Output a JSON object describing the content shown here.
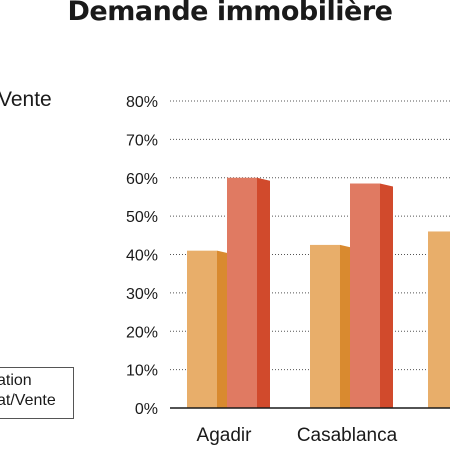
{
  "chart_data": {
    "type": "bar",
    "title": "Demande immobilière",
    "side_label": "Vente",
    "categories": [
      "Agadir",
      "Casablanca",
      ""
    ],
    "series": [
      {
        "name": "Location",
        "values": [
          41,
          42.5,
          46
        ],
        "color": "#e8ae6a",
        "shade": "#d98a2f"
      },
      {
        "name": "Achat/Vente",
        "values": [
          60,
          58.5,
          null
        ],
        "color": "#e07a62",
        "shade": "#d14a2c"
      }
    ],
    "legend_entries": [
      "ation",
      "at/Vente"
    ],
    "yticks": [
      "0%",
      "10%",
      "20%",
      "30%",
      "40%",
      "50%",
      "60%",
      "70%",
      "80%"
    ],
    "ylim": [
      0,
      80
    ],
    "grid": true,
    "grid_style": "dotted"
  }
}
